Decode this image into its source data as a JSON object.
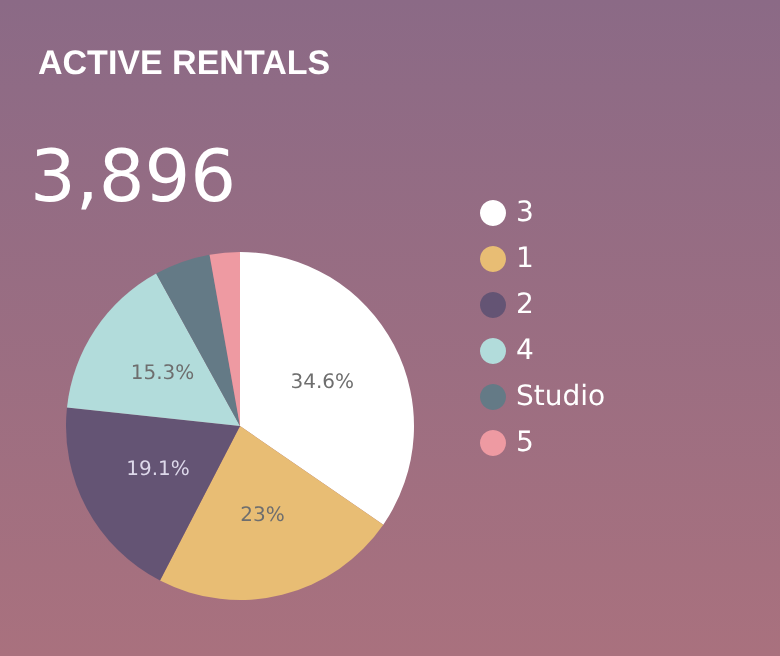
{
  "chart_data": {
    "type": "pie",
    "title": "ACTIVE RENTALS",
    "subtitle": "3,896",
    "categories": [
      "3",
      "1",
      "2",
      "4",
      "Studio",
      "5"
    ],
    "values": [
      34.6,
      23,
      19.1,
      15.3,
      5.2,
      2.8
    ],
    "colors": [
      "#ffffff",
      "#e8bd74",
      "#645474",
      "#b2dcdb",
      "#647a86",
      "#ee9aa2"
    ],
    "value_labels": [
      "34.6%",
      "23%",
      "19.1%",
      "15.3%",
      null,
      null
    ],
    "legend": "right"
  }
}
